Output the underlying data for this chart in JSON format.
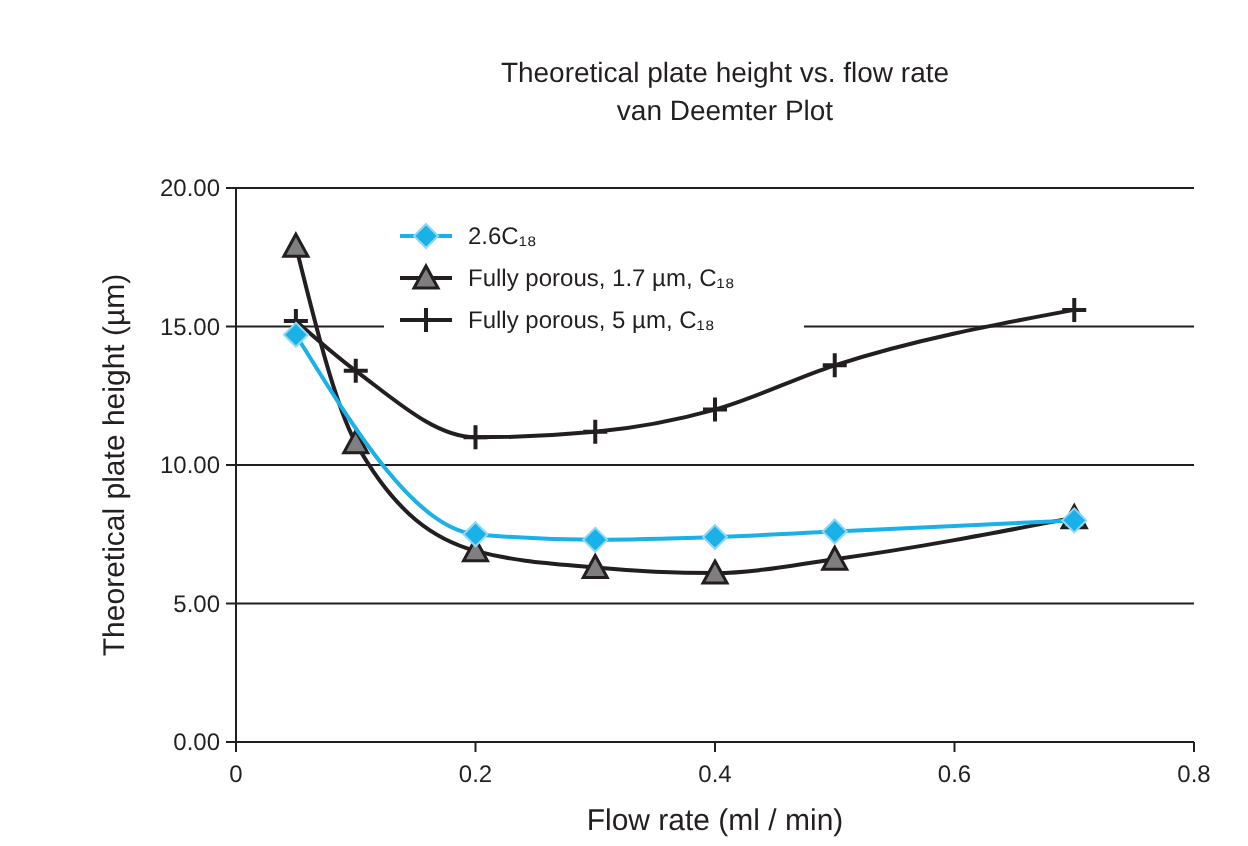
{
  "chart_data": {
    "type": "line",
    "title": "Theoretical plate height vs. flow rate",
    "subtitle": "van Deemter Plot",
    "xlabel": "Flow rate (ml / min)",
    "ylabel": "Theoretical plate height  (µm)",
    "x": [
      0.05,
      0.1,
      0.2,
      0.3,
      0.4,
      0.5,
      0.7
    ],
    "series": [
      {
        "name": "2.6C₁₈",
        "color": "#1ab0e8",
        "marker": "diamond",
        "values": [
          14.7,
          null,
          7.5,
          7.3,
          7.4,
          7.6,
          8.0
        ]
      },
      {
        "name": "Fully porous, 1.7 µm, C₁₈",
        "color": "#231f20",
        "marker": "triangle",
        "values": [
          17.9,
          10.8,
          6.9,
          6.3,
          6.1,
          6.6,
          8.1
        ]
      },
      {
        "name": "Fully porous, 5 µm, C₁₈",
        "color": "#231f20",
        "marker": "cross",
        "values": [
          15.2,
          13.4,
          11.0,
          11.2,
          12.0,
          13.6,
          15.6
        ]
      }
    ],
    "xlim": [
      0,
      0.8
    ],
    "xticks": [
      0,
      0.2,
      0.4,
      0.6,
      0.8
    ],
    "ylim": [
      0,
      20
    ],
    "yticks": [
      {
        "value": 0,
        "label": "0.00"
      },
      {
        "value": 5,
        "label": "5.00"
      },
      {
        "value": 10,
        "label": "10.00"
      },
      {
        "value": 15,
        "label": "15.00"
      },
      {
        "value": 20,
        "label": "20.00"
      }
    ],
    "grid": "y",
    "legend": "top"
  }
}
